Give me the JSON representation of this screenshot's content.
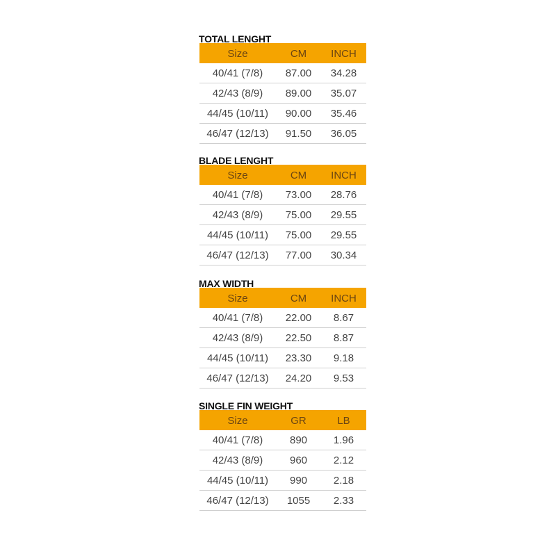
{
  "accent_color": "#f5a400",
  "tables": [
    {
      "title": "TOTAL LENGHT",
      "headers": [
        "Size",
        "CM",
        "INCH"
      ],
      "rows": [
        [
          "40/41 (7/8)",
          "87.00",
          "34.28"
        ],
        [
          "42/43 (8/9)",
          "89.00",
          "35.07"
        ],
        [
          "44/45 (10/11)",
          "90.00",
          "35.46"
        ],
        [
          "46/47 (12/13)",
          "91.50",
          "36.05"
        ]
      ]
    },
    {
      "title": "BLADE LENGHT",
      "headers": [
        "Size",
        "CM",
        "INCH"
      ],
      "rows": [
        [
          "40/41 (7/8)",
          "73.00",
          "28.76"
        ],
        [
          "42/43 (8/9)",
          "75.00",
          "29.55"
        ],
        [
          "44/45 (10/11)",
          "75.00",
          "29.55"
        ],
        [
          "46/47 (12/13)",
          "77.00",
          "30.34"
        ]
      ]
    },
    {
      "title": "MAX WIDTH",
      "headers": [
        "Size",
        "CM",
        "INCH"
      ],
      "rows": [
        [
          "40/41 (7/8)",
          "22.00",
          "8.67"
        ],
        [
          "42/43 (8/9)",
          "22.50",
          "8.87"
        ],
        [
          "44/45 (10/11)",
          "23.30",
          "9.18"
        ],
        [
          "46/47 (12/13)",
          "24.20",
          "9.53"
        ]
      ]
    },
    {
      "title": "SINGLE FIN WEIGHT",
      "headers": [
        "Size",
        "GR",
        "LB"
      ],
      "rows": [
        [
          "40/41 (7/8)",
          "890",
          "1.96"
        ],
        [
          "42/43 (8/9)",
          "960",
          "2.12"
        ],
        [
          "44/45 (10/11)",
          "990",
          "2.18"
        ],
        [
          "46/47 (12/13)",
          "1055",
          "2.33"
        ]
      ]
    }
  ]
}
